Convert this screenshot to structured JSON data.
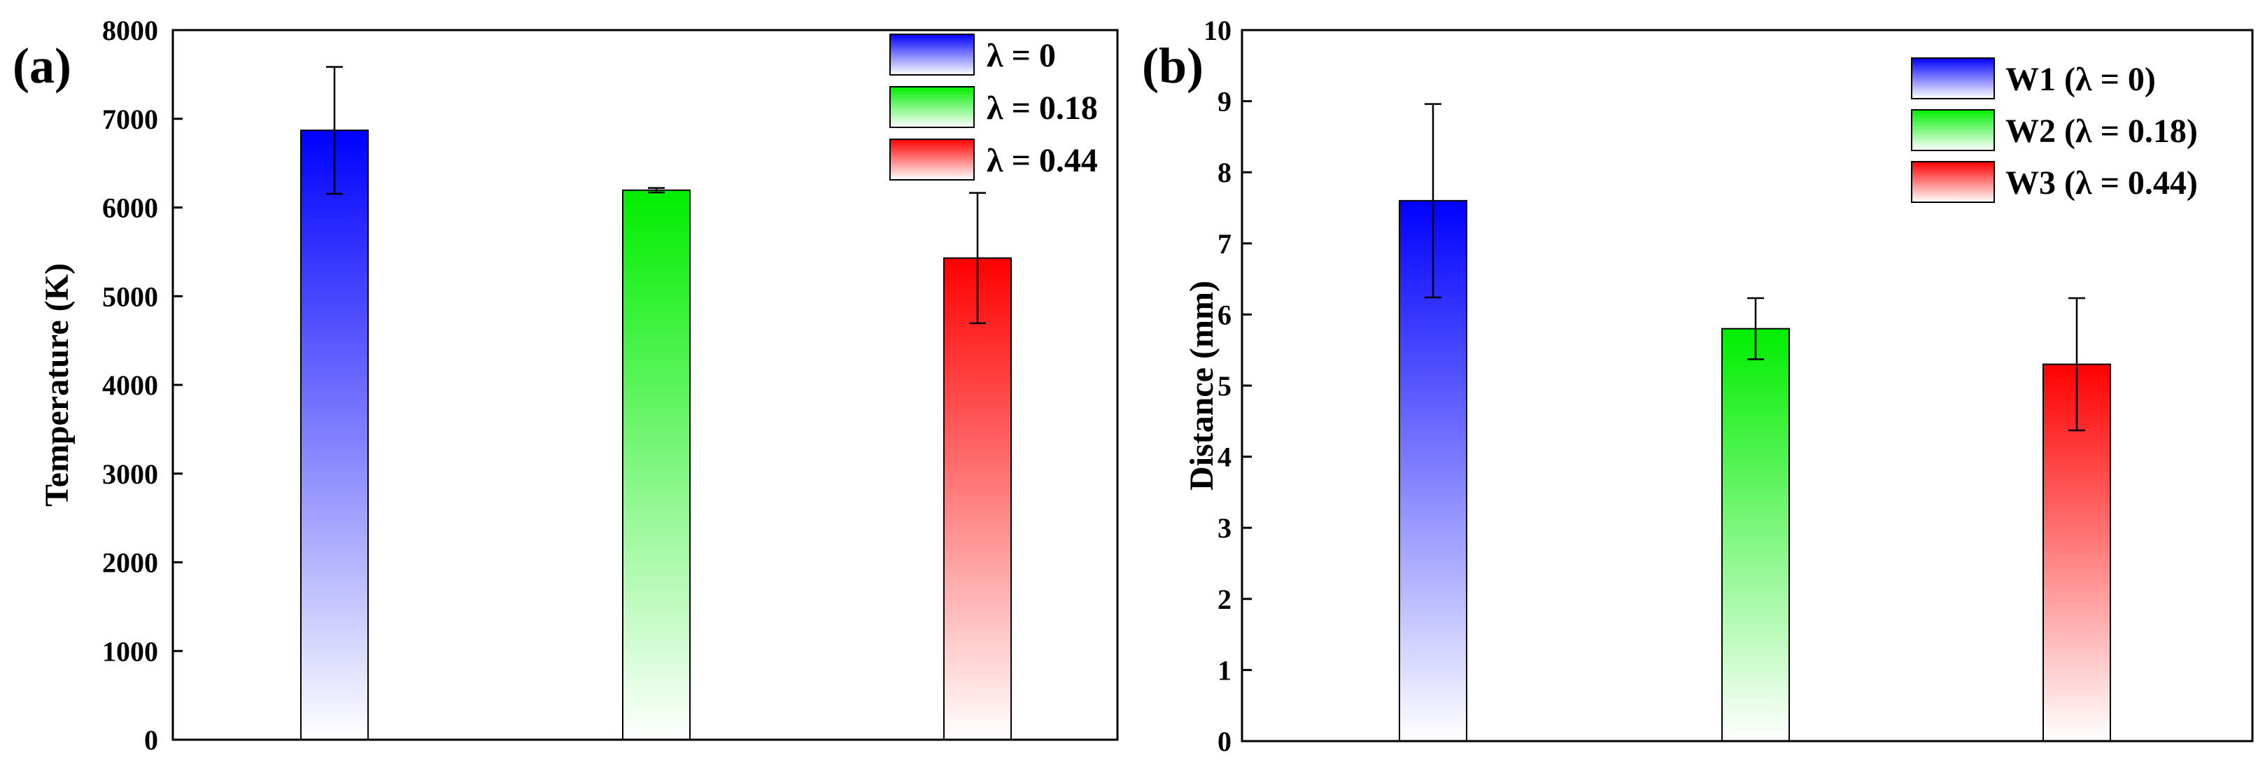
{
  "chart_data": [
    {
      "panel": "(a)",
      "type": "bar",
      "title": "",
      "xlabel": "",
      "ylabel": "Temperature (K)",
      "ylim": [
        0,
        8000
      ],
      "yticks": [
        0,
        1000,
        2000,
        3000,
        4000,
        5000,
        6000,
        7000,
        8000
      ],
      "categories": [
        "λ = 0",
        "λ = 0.18",
        "λ = 0.44"
      ],
      "values": [
        6870,
        6195,
        5430
      ],
      "errors": [
        715,
        25,
        735
      ],
      "colors": [
        "#0000ff",
        "#00ee00",
        "#ff0000"
      ],
      "legend": [
        "λ = 0",
        "λ = 0.18",
        "λ = 0.44"
      ],
      "legend_position": "top-right",
      "grid": false
    },
    {
      "panel": "(b)",
      "type": "bar",
      "title": "",
      "xlabel": "",
      "ylabel": "Distance (mm)",
      "ylim": [
        0,
        10
      ],
      "yticks": [
        0,
        1,
        2,
        3,
        4,
        5,
        6,
        7,
        8,
        9,
        10
      ],
      "categories": [
        "W1 (λ = 0)",
        "W2 (λ = 0.18)",
        "W3 (λ = 0.44)"
      ],
      "values": [
        7.6,
        5.8,
        5.3
      ],
      "errors": [
        1.36,
        0.43,
        0.93
      ],
      "colors": [
        "#0000ff",
        "#00ee00",
        "#ff0000"
      ],
      "legend": [
        "W1 (λ = 0)",
        "W2 (λ = 0.18)",
        "W3 (λ = 0.44)"
      ],
      "legend_position": "top-right",
      "grid": false
    }
  ]
}
